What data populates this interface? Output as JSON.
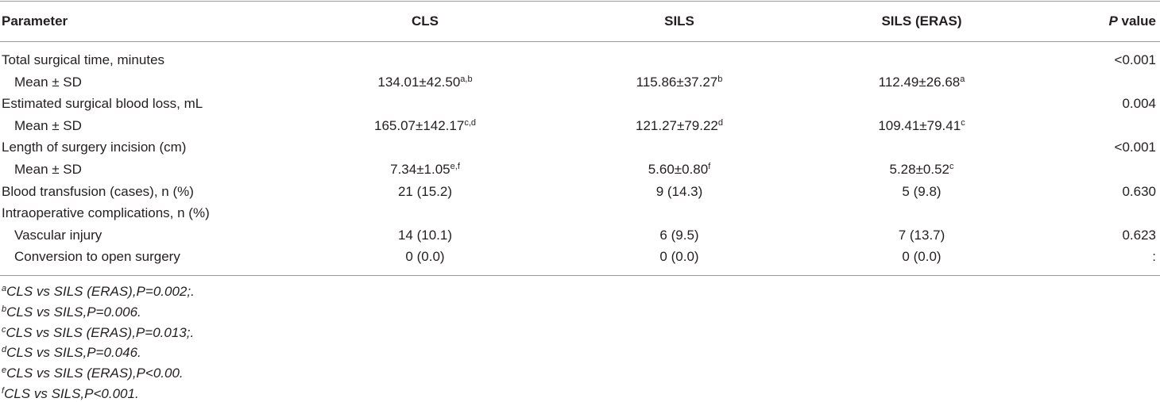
{
  "table": {
    "header": [
      {
        "text": "Parameter"
      },
      {
        "text": "CLS"
      },
      {
        "text": "SILS"
      },
      {
        "text": "SILS (ERAS)"
      },
      {
        "italic": "P",
        "text": " value"
      }
    ],
    "rows": [
      {
        "indent": false,
        "cells": [
          "Total surgical time, minutes",
          null,
          null,
          null,
          "<0.001"
        ]
      },
      {
        "indent": true,
        "cells": [
          "Mean ± SD",
          {
            "text": "134.01±42.50",
            "sup": "a,b"
          },
          {
            "text": "115.86±37.27",
            "sup": "b"
          },
          {
            "text": "112.49±26.68",
            "sup": "a"
          },
          null
        ]
      },
      {
        "indent": false,
        "cells": [
          "Estimated surgical blood loss, mL",
          null,
          null,
          null,
          "0.004"
        ]
      },
      {
        "indent": true,
        "cells": [
          "Mean ± SD",
          {
            "text": "165.07±142.17",
            "sup": "c,d"
          },
          {
            "text": "121.27±79.22",
            "sup": "d"
          },
          {
            "text": "109.41±79.41",
            "sup": "c"
          },
          null
        ]
      },
      {
        "indent": false,
        "cells": [
          "Length of surgery incision (cm)",
          null,
          null,
          null,
          "<0.001"
        ]
      },
      {
        "indent": true,
        "cells": [
          "Mean ± SD",
          {
            "text": "7.34±1.05",
            "sup": "e,f"
          },
          {
            "text": "5.60±0.80",
            "sup": "f"
          },
          {
            "text": "5.28±0.52",
            "sup": "c"
          },
          null
        ]
      },
      {
        "indent": false,
        "cells": [
          "Blood transfusion (cases), n (%)",
          "21 (15.2)",
          "9 (14.3)",
          "5 (9.8)",
          "0.630"
        ]
      },
      {
        "indent": false,
        "cells": [
          "Intraoperative complications, n (%)",
          null,
          null,
          null,
          null
        ]
      },
      {
        "indent": true,
        "cells": [
          "Vascular injury",
          "14 (10.1)",
          "6 (9.5)",
          "7 (13.7)",
          "0.623"
        ]
      },
      {
        "indent": true,
        "cells": [
          "Conversion to open surgery",
          "0 (0.0)",
          "0 (0.0)",
          "0 (0.0)",
          ":"
        ]
      }
    ],
    "footnotes": [
      {
        "sup": "a",
        "text": "CLS vs SILS (ERAS),P=0.002;."
      },
      {
        "sup": "b",
        "text": "CLS vs SILS,P=0.006."
      },
      {
        "sup": "c",
        "text": "CLS vs SILS (ERAS),P=0.013;."
      },
      {
        "sup": "d",
        "text": "CLS vs SILS,P=0.046."
      },
      {
        "sup": "e",
        "text": "CLS vs SILS (ERAS),P<0.00."
      },
      {
        "sup": "f",
        "text": "CLS vs SILS,P<0.001."
      }
    ]
  }
}
